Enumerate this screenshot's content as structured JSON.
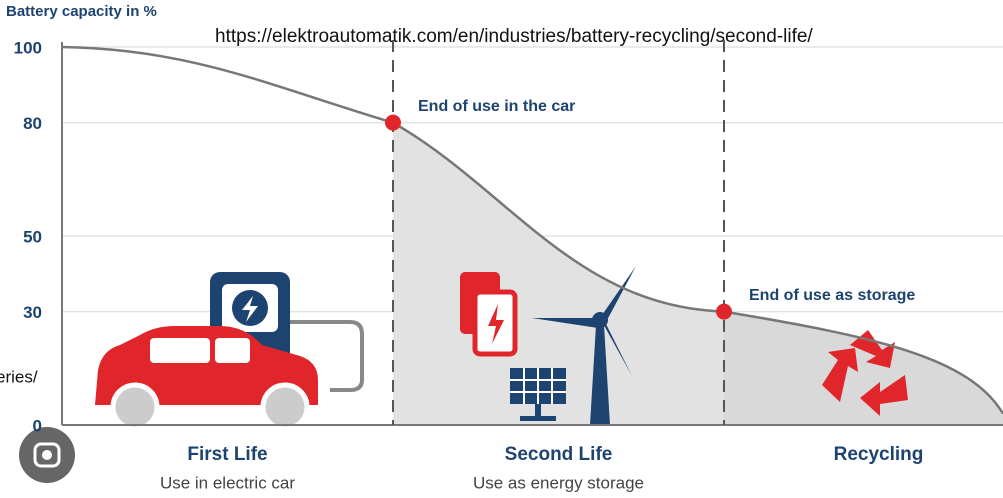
{
  "chart_data": {
    "type": "line",
    "title": "Battery capacity in %",
    "categories": [
      null,
      null,
      null,
      null
    ],
    "values": [
      100,
      80,
      30,
      3
    ],
    "color": "#777777",
    "marker_color": "#e0262b",
    "ylim": [
      0,
      100
    ],
    "yticks": [
      0,
      30,
      50,
      80,
      100
    ],
    "grid": true,
    "annotations": [
      {
        "index": 1,
        "text": "End of use in the car"
      },
      {
        "index": 2,
        "text": "End of use as storage"
      }
    ],
    "phases": [
      {
        "title": "First Life",
        "subtitle": "Use in electric car"
      },
      {
        "title": "Second Life",
        "subtitle": "Use as energy storage"
      },
      {
        "title": "Recycling",
        "subtitle": ""
      }
    ]
  },
  "overlay": {
    "url": "https://elektroautomatik.com/en/industries/battery-recycling/second-life/",
    "fragment": "eries/"
  }
}
